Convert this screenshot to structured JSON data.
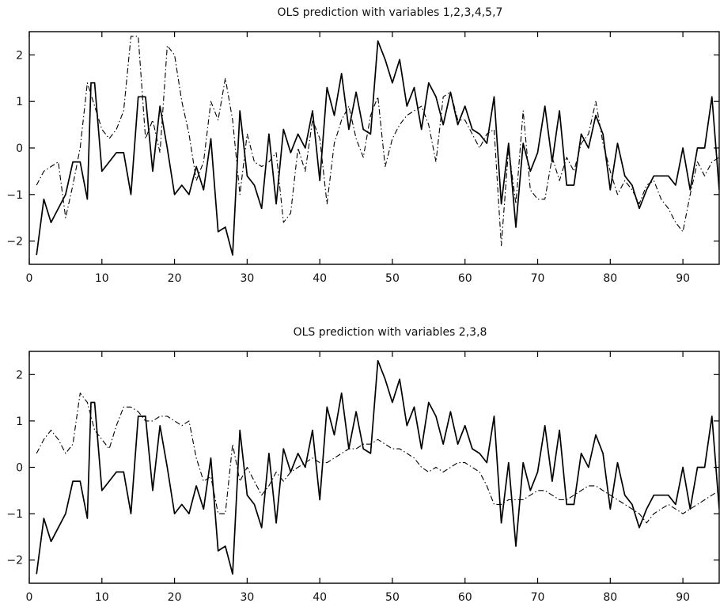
{
  "chart_data": [
    {
      "type": "line",
      "title": "OLS prediction with variables 1,2,3,4,5,7",
      "xlim": [
        0,
        95
      ],
      "ylim": [
        -2.5,
        2.5
      ],
      "xticks": [
        0,
        10,
        20,
        30,
        40,
        50,
        60,
        70,
        80,
        90
      ],
      "yticks": [
        -2,
        -1,
        0,
        1,
        2
      ],
      "grid": false,
      "series": [
        {
          "style": "solid",
          "x": [
            1,
            2,
            3,
            4,
            5,
            6,
            7,
            8,
            8.5,
            9,
            10,
            11,
            12,
            13,
            14,
            15,
            16,
            17,
            18,
            19,
            20,
            21,
            22,
            23,
            24,
            25,
            26,
            27,
            28,
            29,
            30,
            31,
            32,
            33,
            34,
            35,
            36,
            37,
            38,
            39,
            40,
            41,
            42,
            43,
            44,
            45,
            46,
            47,
            48,
            49,
            50,
            51,
            52,
            53,
            54,
            55,
            56,
            57,
            58,
            59,
            60,
            61,
            62,
            63,
            64,
            65,
            66,
            67,
            68,
            69,
            70,
            71,
            72,
            73,
            74,
            75,
            76,
            77,
            78,
            79,
            80,
            81,
            82,
            83,
            84,
            85,
            86,
            87,
            88,
            89,
            90,
            91,
            92,
            93,
            94,
            95
          ],
          "y": [
            -2.3,
            -1.1,
            -1.6,
            -1.3,
            -1.0,
            -0.3,
            -0.3,
            -1.1,
            1.4,
            1.4,
            -0.5,
            -0.3,
            -0.1,
            -0.1,
            -1.0,
            1.1,
            1.1,
            -0.5,
            0.9,
            0.0,
            -1.0,
            -0.8,
            -1.0,
            -0.4,
            -0.9,
            0.2,
            -1.8,
            -1.7,
            -2.3,
            0.8,
            -0.6,
            -0.8,
            -1.3,
            0.3,
            -1.2,
            0.4,
            -0.1,
            0.3,
            0.0,
            0.8,
            -0.7,
            1.3,
            0.7,
            1.6,
            0.4,
            1.2,
            0.4,
            0.3,
            2.3,
            1.9,
            1.4,
            1.9,
            0.9,
            1.3,
            0.4,
            1.4,
            1.1,
            0.5,
            1.2,
            0.5,
            0.9,
            0.4,
            0.3,
            0.1,
            1.1,
            -1.2,
            0.1,
            -1.7,
            0.1,
            -0.5,
            -0.1,
            0.9,
            -0.3,
            0.8,
            -0.8,
            -0.8,
            0.3,
            0.0,
            0.7,
            0.3,
            -0.9,
            0.1,
            -0.6,
            -0.8,
            -1.3,
            -0.9,
            -0.6,
            -0.6,
            -0.6,
            -0.8,
            0.0,
            -0.9,
            0.0,
            0.0,
            1.1,
            -0.9
          ]
        },
        {
          "style": "dash-dot",
          "x": [
            1,
            2,
            3,
            4,
            5,
            6,
            7,
            8,
            9,
            10,
            11,
            12,
            13,
            14,
            15,
            16,
            17,
            18,
            19,
            20,
            21,
            22,
            23,
            24,
            25,
            26,
            27,
            28,
            29,
            30,
            31,
            32,
            33,
            34,
            35,
            36,
            37,
            38,
            39,
            40,
            41,
            42,
            43,
            44,
            45,
            46,
            47,
            48,
            49,
            50,
            51,
            52,
            53,
            54,
            55,
            56,
            57,
            58,
            59,
            60,
            61,
            62,
            63,
            64,
            65,
            66,
            67,
            68,
            69,
            70,
            71,
            72,
            73,
            74,
            75,
            76,
            77,
            78,
            79,
            80,
            81,
            82,
            83,
            84,
            85,
            86,
            87,
            88,
            89,
            90,
            91,
            92,
            93,
            94,
            95
          ],
          "y": [
            -0.8,
            -0.5,
            -0.4,
            -0.3,
            -1.5,
            -0.8,
            0.0,
            1.4,
            0.9,
            0.4,
            0.2,
            0.4,
            0.8,
            2.4,
            2.4,
            0.2,
            0.6,
            -0.1,
            2.2,
            2.0,
            1.0,
            0.3,
            -0.7,
            -0.3,
            1.0,
            0.6,
            1.5,
            0.6,
            -1.0,
            0.3,
            -0.3,
            -0.4,
            -0.3,
            -0.1,
            -1.6,
            -1.4,
            0.0,
            -0.5,
            0.6,
            0.2,
            -1.2,
            0.1,
            0.6,
            0.9,
            0.2,
            -0.2,
            0.7,
            1.1,
            -0.4,
            0.2,
            0.5,
            0.7,
            0.8,
            0.9,
            0.5,
            -0.3,
            1.1,
            1.2,
            0.6,
            0.6,
            0.3,
            0.0,
            0.3,
            0.4,
            -2.1,
            0.0,
            -1.2,
            0.8,
            -0.9,
            -1.1,
            -1.1,
            -0.2,
            -0.7,
            -0.2,
            -0.5,
            0.1,
            0.3,
            1.0,
            0.1,
            -0.5,
            -1.0,
            -0.7,
            -0.9,
            -1.2,
            -0.8,
            -0.7,
            -1.1,
            -1.3,
            -1.6,
            -1.8,
            -1.0,
            -0.3,
            -0.6,
            -0.3,
            -0.2
          ]
        }
      ]
    },
    {
      "type": "line",
      "title": "OLS prediction with variables 2,3,8",
      "xlim": [
        0,
        95
      ],
      "ylim": [
        -2.5,
        2.5
      ],
      "xticks": [
        0,
        10,
        20,
        30,
        40,
        50,
        60,
        70,
        80,
        90
      ],
      "yticks": [
        -2,
        -1,
        0,
        1,
        2
      ],
      "grid": false,
      "series": [
        {
          "style": "solid",
          "x": [
            1,
            2,
            3,
            4,
            5,
            6,
            7,
            8,
            8.5,
            9,
            10,
            11,
            12,
            13,
            14,
            15,
            16,
            17,
            18,
            19,
            20,
            21,
            22,
            23,
            24,
            25,
            26,
            27,
            28,
            29,
            30,
            31,
            32,
            33,
            34,
            35,
            36,
            37,
            38,
            39,
            40,
            41,
            42,
            43,
            44,
            45,
            46,
            47,
            48,
            49,
            50,
            51,
            52,
            53,
            54,
            55,
            56,
            57,
            58,
            59,
            60,
            61,
            62,
            63,
            64,
            65,
            66,
            67,
            68,
            69,
            70,
            71,
            72,
            73,
            74,
            75,
            76,
            77,
            78,
            79,
            80,
            81,
            82,
            83,
            84,
            85,
            86,
            87,
            88,
            89,
            90,
            91,
            92,
            93,
            94,
            95
          ],
          "y": [
            -2.3,
            -1.1,
            -1.6,
            -1.3,
            -1.0,
            -0.3,
            -0.3,
            -1.1,
            1.4,
            1.4,
            -0.5,
            -0.3,
            -0.1,
            -0.1,
            -1.0,
            1.1,
            1.1,
            -0.5,
            0.9,
            0.0,
            -1.0,
            -0.8,
            -1.0,
            -0.4,
            -0.9,
            0.2,
            -1.8,
            -1.7,
            -2.3,
            0.8,
            -0.6,
            -0.8,
            -1.3,
            0.3,
            -1.2,
            0.4,
            -0.1,
            0.3,
            0.0,
            0.8,
            -0.7,
            1.3,
            0.7,
            1.6,
            0.4,
            1.2,
            0.4,
            0.3,
            2.3,
            1.9,
            1.4,
            1.9,
            0.9,
            1.3,
            0.4,
            1.4,
            1.1,
            0.5,
            1.2,
            0.5,
            0.9,
            0.4,
            0.3,
            0.1,
            1.1,
            -1.2,
            0.1,
            -1.7,
            0.1,
            -0.5,
            -0.1,
            0.9,
            -0.3,
            0.8,
            -0.8,
            -0.8,
            0.3,
            0.0,
            0.7,
            0.3,
            -0.9,
            0.1,
            -0.6,
            -0.8,
            -1.3,
            -0.9,
            -0.6,
            -0.6,
            -0.6,
            -0.8,
            0.0,
            -0.9,
            0.0,
            0.0,
            1.1,
            -0.9
          ]
        },
        {
          "style": "dash-dot",
          "x": [
            1,
            2,
            3,
            4,
            5,
            6,
            7,
            8,
            9,
            10,
            11,
            12,
            13,
            14,
            15,
            16,
            17,
            18,
            19,
            20,
            21,
            22,
            23,
            24,
            25,
            26,
            27,
            28,
            29,
            30,
            31,
            32,
            33,
            34,
            35,
            36,
            37,
            38,
            39,
            40,
            41,
            42,
            43,
            44,
            45,
            46,
            47,
            48,
            49,
            50,
            51,
            52,
            53,
            54,
            55,
            56,
            57,
            58,
            59,
            60,
            61,
            62,
            63,
            64,
            65,
            66,
            67,
            68,
            69,
            70,
            71,
            72,
            73,
            74,
            75,
            76,
            77,
            78,
            79,
            80,
            81,
            82,
            83,
            84,
            85,
            86,
            87,
            88,
            89,
            90,
            91,
            92,
            93,
            94,
            95
          ],
          "y": [
            0.3,
            0.6,
            0.8,
            0.6,
            0.3,
            0.5,
            1.6,
            1.4,
            0.8,
            0.6,
            0.4,
            0.9,
            1.3,
            1.3,
            1.2,
            1.0,
            1.0,
            1.1,
            1.1,
            1.0,
            0.9,
            1.0,
            0.2,
            -0.3,
            -0.2,
            -1.0,
            -1.0,
            0.5,
            -0.3,
            0.0,
            -0.3,
            -0.6,
            -0.4,
            -0.1,
            -0.3,
            -0.1,
            0.0,
            0.1,
            0.2,
            0.1,
            0.1,
            0.2,
            0.3,
            0.4,
            0.4,
            0.5,
            0.5,
            0.6,
            0.5,
            0.4,
            0.4,
            0.3,
            0.2,
            0.0,
            -0.1,
            0.0,
            -0.1,
            0.0,
            0.1,
            0.1,
            0.0,
            -0.1,
            -0.4,
            -0.8,
            -0.8,
            -0.7,
            -0.7,
            -0.7,
            -0.6,
            -0.5,
            -0.5,
            -0.6,
            -0.7,
            -0.7,
            -0.6,
            -0.5,
            -0.4,
            -0.4,
            -0.5,
            -0.6,
            -0.7,
            -0.8,
            -0.9,
            -1.0,
            -1.2,
            -1.0,
            -0.9,
            -0.8,
            -0.9,
            -1.0,
            -0.9,
            -0.8,
            -0.7,
            -0.6,
            -0.5
          ]
        }
      ]
    }
  ]
}
